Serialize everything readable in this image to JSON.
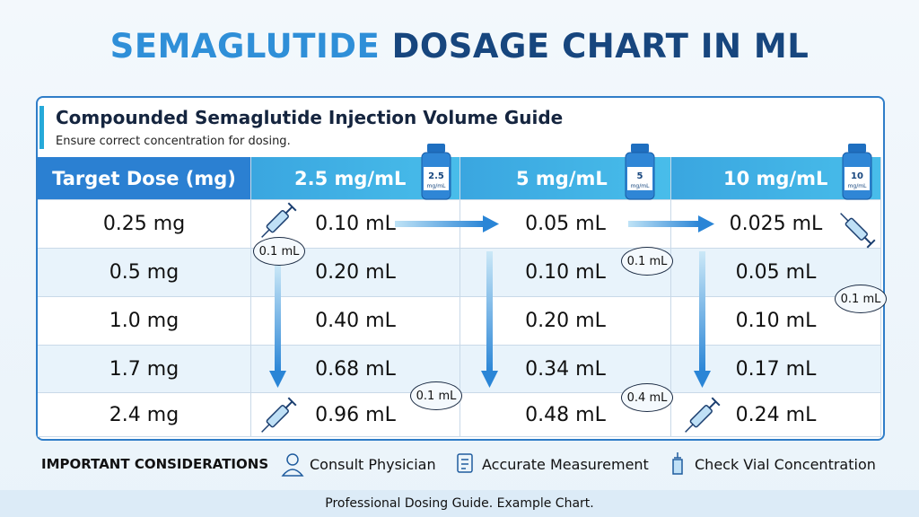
{
  "header": {
    "title_highlight": "SEMAGLUTIDE",
    "title_rest": "DOSAGE CHART IN ML"
  },
  "card": {
    "title": "Compounded Semaglutide Injection Volume Guide",
    "subtitle": "Ensure correct concentration for dosing."
  },
  "table": {
    "columns": [
      "Target Dose (mg)",
      "2.5 mg/mL",
      "5 mg/mL",
      "10 mg/mL"
    ],
    "vials": [
      {
        "strength": "2.5",
        "unit": "mg/mL"
      },
      {
        "strength": "5",
        "unit": "mg/mL"
      },
      {
        "strength": "10",
        "unit": "mg/mL"
      }
    ],
    "rows": [
      [
        "0.25 mg",
        "0.10 mL",
        "0.05 mL",
        "0.025 mL"
      ],
      [
        "0.5 mg",
        "0.20 mL",
        "0.10 mL",
        "0.05 mL"
      ],
      [
        "1.0 mg",
        "0.40 mL",
        "0.20 mL",
        "0.10 mL"
      ],
      [
        "1.7 mg",
        "0.68 mL",
        "0.34 mL",
        "0.17 mL"
      ],
      [
        "2.4 mg",
        "0.96 mL",
        "0.48 mL",
        "0.24 mL"
      ]
    ]
  },
  "callouts": [
    "0.1 mL",
    "0.1 mL",
    "0.1 mL",
    "0.1 mL",
    "0.4 mL"
  ],
  "considerations": {
    "title": "IMPORTANT CONSIDERATIONS",
    "items": [
      "Consult Physician",
      "Accurate Measurement",
      "Check Vial Concentration"
    ]
  },
  "footer": "Professional Dosing Guide. Example Chart."
}
